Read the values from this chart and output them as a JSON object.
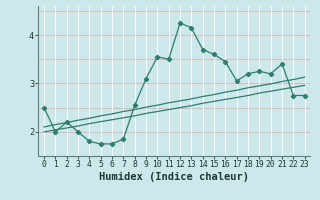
{
  "xlabel": "Humidex (Indice chaleur)",
  "x_values": [
    0,
    1,
    2,
    3,
    4,
    5,
    6,
    7,
    8,
    9,
    10,
    11,
    12,
    13,
    14,
    15,
    16,
    17,
    18,
    19,
    20,
    21,
    22,
    23
  ],
  "line1_y": [
    2.5,
    2.0,
    2.2,
    2.0,
    1.8,
    1.75,
    1.75,
    1.85,
    2.55,
    3.1,
    3.55,
    3.5,
    4.25,
    4.15,
    3.7,
    3.6,
    3.45,
    3.05,
    3.2,
    3.25,
    3.2,
    3.4,
    2.75,
    2.75
  ],
  "regression1_y": [
    2.0,
    2.04,
    2.08,
    2.12,
    2.17,
    2.21,
    2.25,
    2.29,
    2.33,
    2.38,
    2.42,
    2.46,
    2.5,
    2.54,
    2.59,
    2.63,
    2.67,
    2.71,
    2.75,
    2.8,
    2.84,
    2.88,
    2.92,
    2.96
  ],
  "regression2_y": [
    2.1,
    2.15,
    2.19,
    2.24,
    2.28,
    2.33,
    2.37,
    2.42,
    2.46,
    2.51,
    2.55,
    2.6,
    2.64,
    2.68,
    2.73,
    2.77,
    2.82,
    2.86,
    2.91,
    2.95,
    2.99,
    3.04,
    3.08,
    3.13
  ],
  "line_color": "#2e7d6e",
  "bg_color": "#cde8ea",
  "grid_color_v": "#b8d8da",
  "grid_color_h": "#e8b8b8",
  "ylim": [
    1.5,
    4.6
  ],
  "yticks": [
    2,
    3,
    4
  ],
  "xlim": [
    -0.5,
    23.5
  ],
  "tick_label_fontsize": 5.8,
  "xlabel_fontsize": 7.5
}
